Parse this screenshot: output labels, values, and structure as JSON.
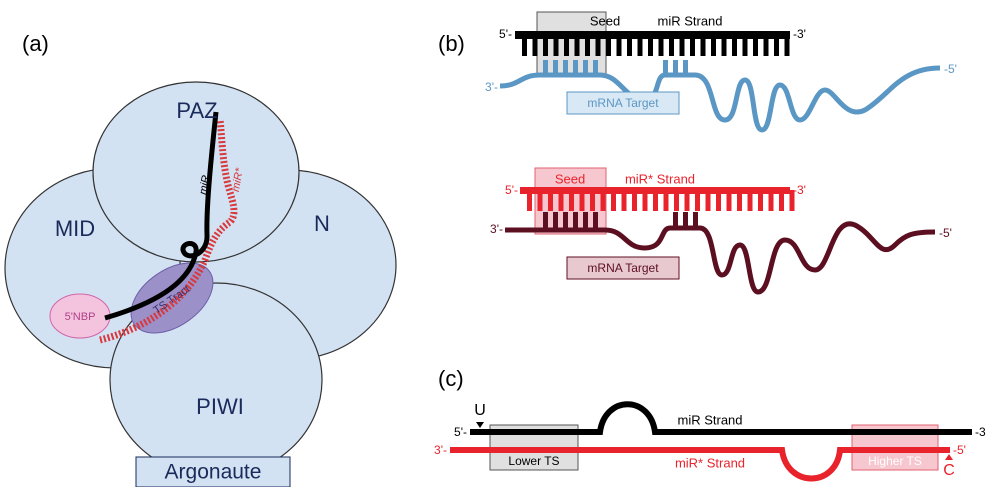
{
  "panel_a": {
    "label": "(a)",
    "domains": [
      "PAZ",
      "MID",
      "N",
      "PIWI"
    ],
    "caption": "Argonaute",
    "nbp": "5'NBP",
    "tract": "TS Tract",
    "guide": "miR",
    "star": "miR*"
  },
  "panel_b": {
    "label": "(b)",
    "top": {
      "seed": "Seed",
      "strand": "miR Strand",
      "strand_5": "5'-",
      "strand_3": "-3'",
      "target_3": "3'-",
      "target_5": "-5'",
      "target": "mRNA Target"
    },
    "bottom": {
      "seed": "Seed",
      "strand": "miR* Strand",
      "strand_5": "5'-",
      "strand_3": "-3'",
      "target_3": "3'-",
      "target_5": "-5'",
      "target": "mRNA Target"
    }
  },
  "panel_c": {
    "label": "(c)",
    "u": "U",
    "guide_5": "5'-",
    "guide": "miR Strand",
    "guide_3": "-3",
    "star_3": "3'-",
    "star_5": "-5'",
    "lower": "Lower TS",
    "star": "miR* Strand",
    "higher": "Higher TS",
    "c": "C"
  }
}
